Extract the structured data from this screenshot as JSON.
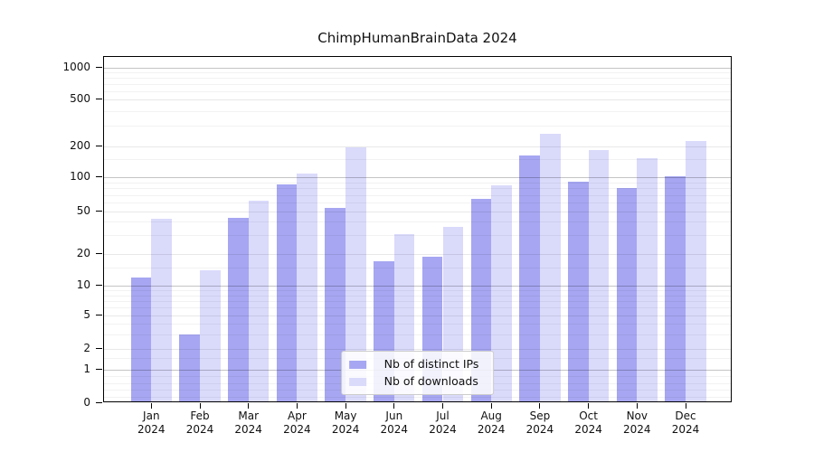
{
  "chart_data": {
    "type": "bar",
    "title": "ChimpHumanBrainData 2024",
    "categories": [
      "Jan 2024",
      "Feb 2024",
      "Mar 2024",
      "Apr 2024",
      "May 2024",
      "Jun 2024",
      "Jul 2024",
      "Aug 2024",
      "Sep 2024",
      "Oct 2024",
      "Nov 2024",
      "Dec 2024"
    ],
    "series": [
      {
        "name": "Nb of distinct IPs",
        "color": "#a6a6f2",
        "values": [
          12,
          3,
          44,
          87,
          54,
          17,
          19,
          65,
          162,
          92,
          80,
          102
        ]
      },
      {
        "name": "Nb of downloads",
        "color": "#dadafb",
        "values": [
          43,
          14,
          62,
          108,
          197,
          31,
          36,
          85,
          258,
          186,
          154,
          222
        ]
      }
    ],
    "xlabel": "",
    "ylabel": "",
    "yscale": "symlog",
    "y_ticks": [
      0,
      1,
      2,
      5,
      10,
      20,
      50,
      100,
      200,
      500,
      1000
    ],
    "ylim": [
      0,
      1300
    ],
    "grid": "horizontal, major decades emphasized, minor log subdivisions",
    "legend_position": "lower center"
  },
  "colors": {
    "series_ips": "#a6a6f2",
    "series_downloads": "#dadafb",
    "major_grid": "#c4c4c4",
    "minor_grid": "#ececec",
    "spine": "#000000",
    "background": "#ffffff",
    "legend_border": "#cccccc"
  }
}
